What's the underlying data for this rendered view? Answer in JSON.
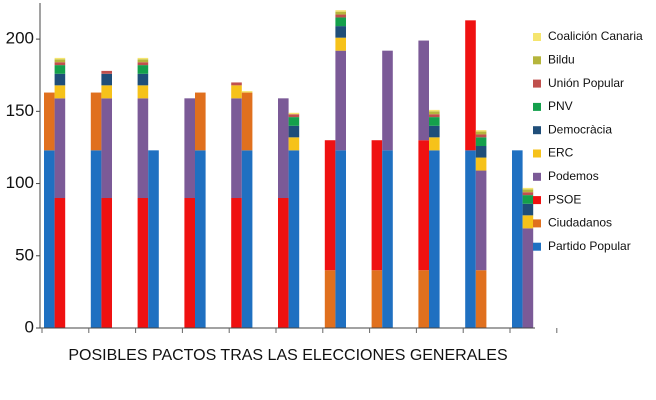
{
  "chart_data": {
    "type": "stacked-bar",
    "title": "POSIBLES PACTOS TRAS LAS ELECCIONES GENERALES",
    "categories": [
      null,
      null,
      null,
      null,
      null,
      null,
      null,
      null,
      null,
      null,
      null,
      null,
      null,
      null,
      null,
      null,
      null,
      null,
      null,
      null,
      null,
      null
    ],
    "series": [
      {
        "name": "Partido Popular",
        "color": "#1f70c1",
        "values": [
          123,
          null,
          123,
          null,
          null,
          123,
          null,
          123,
          null,
          123,
          null,
          123,
          null,
          123,
          null,
          123,
          null,
          123,
          123,
          null,
          123,
          null
        ]
      },
      {
        "name": "Ciudadanos",
        "color": "#e0701e",
        "values": [
          40,
          null,
          40,
          null,
          null,
          null,
          null,
          40,
          null,
          40,
          null,
          null,
          40,
          null,
          40,
          null,
          40,
          null,
          null,
          40,
          null,
          null
        ]
      },
      {
        "name": "PSOE",
        "color": "#ef1111",
        "values": [
          null,
          90,
          null,
          90,
          90,
          null,
          90,
          null,
          90,
          null,
          90,
          null,
          90,
          null,
          90,
          null,
          90,
          null,
          90,
          null,
          null,
          null
        ]
      },
      {
        "name": "Podemos",
        "color": "#7b5a97",
        "values": [
          null,
          69,
          null,
          69,
          69,
          null,
          69,
          null,
          69,
          null,
          69,
          null,
          null,
          69,
          null,
          69,
          69,
          null,
          null,
          69,
          null,
          69
        ]
      },
      {
        "name": "ERC",
        "color": "#f6c21a",
        "values": [
          null,
          9,
          null,
          9,
          9,
          null,
          null,
          null,
          9,
          null,
          null,
          9,
          null,
          9,
          null,
          null,
          null,
          9,
          null,
          9,
          null,
          9
        ]
      },
      {
        "name": "Democràcia",
        "color": "#1f4e79",
        "values": [
          null,
          8,
          null,
          8,
          8,
          null,
          null,
          null,
          null,
          null,
          null,
          8,
          null,
          8,
          null,
          null,
          null,
          8,
          null,
          8,
          null,
          8
        ]
      },
      {
        "name": "PNV",
        "color": "#14a04c",
        "values": [
          null,
          6,
          null,
          null,
          6,
          null,
          null,
          null,
          null,
          null,
          null,
          6,
          null,
          6,
          null,
          null,
          null,
          6,
          null,
          6,
          null,
          6
        ]
      },
      {
        "name": "Unión Popular",
        "color": "#c0504d",
        "values": [
          null,
          2,
          null,
          2,
          2,
          null,
          null,
          null,
          2,
          null,
          null,
          2,
          null,
          2,
          null,
          null,
          null,
          2,
          null,
          2,
          null,
          2
        ]
      },
      {
        "name": "Bildu",
        "color": "#b5b53c",
        "values": [
          null,
          2,
          null,
          null,
          2,
          null,
          null,
          null,
          null,
          null,
          null,
          null,
          null,
          2,
          null,
          null,
          null,
          2,
          null,
          2,
          null,
          2
        ]
      },
      {
        "name": "Coalición Canaria",
        "color": "#f5e56e",
        "values": [
          null,
          1,
          null,
          null,
          1,
          null,
          null,
          null,
          null,
          1,
          null,
          1,
          null,
          1,
          null,
          null,
          null,
          1,
          null,
          1,
          null,
          1
        ]
      }
    ],
    "ylim": [
      0,
      225
    ],
    "yticks": [
      0,
      50,
      100,
      150,
      200
    ]
  }
}
